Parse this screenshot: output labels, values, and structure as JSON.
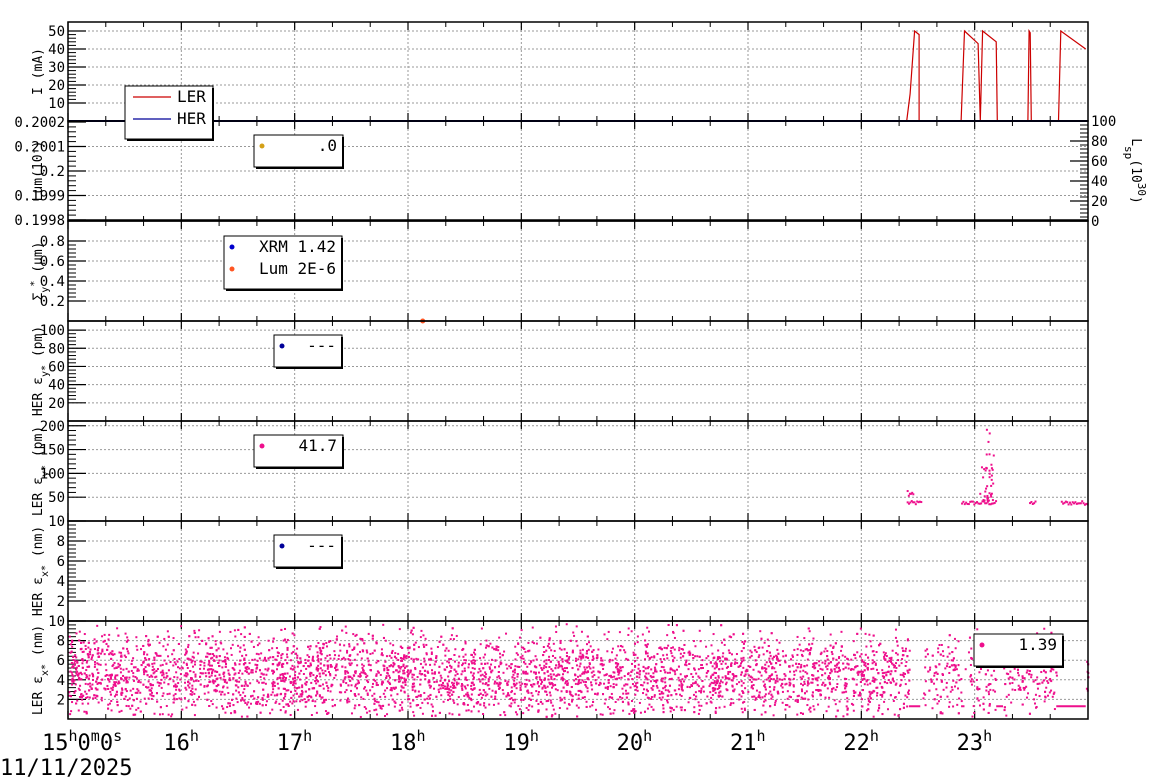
{
  "date_label": "11/11/2025",
  "x_ticks": [
    {
      "h": 15,
      "label": "15",
      "sup": "h",
      "extra": "0",
      "extra_sup": "m",
      "extra2": "0",
      "extra2_sup": "s"
    },
    {
      "h": 16,
      "label": "16",
      "sup": "h"
    },
    {
      "h": 17,
      "label": "17",
      "sup": "h"
    },
    {
      "h": 18,
      "label": "18",
      "sup": "h"
    },
    {
      "h": 19,
      "label": "19",
      "sup": "h"
    },
    {
      "h": 20,
      "label": "20",
      "sup": "h"
    },
    {
      "h": 21,
      "label": "21",
      "sup": "h"
    },
    {
      "h": 22,
      "label": "22",
      "sup": "h"
    },
    {
      "h": 23,
      "label": "23",
      "sup": "h"
    }
  ],
  "colors": {
    "ler": "#cc0000",
    "her": "#000099",
    "emit": "#ee0f8c",
    "lum": "#d4a017",
    "lumdot": "#ff5522"
  },
  "chart_data": [
    {
      "type": "line",
      "id": "current",
      "ylabel": "I (mA)",
      "xlim": [
        15.0,
        24.0
      ],
      "ylim": [
        0,
        55
      ],
      "yticks": [
        "10",
        "20",
        "30",
        "40",
        "50"
      ],
      "legend": [
        {
          "name": "LER",
          "color": "#cc0000"
        },
        {
          "name": "HER",
          "color": "#000099"
        }
      ],
      "series": [
        {
          "name": "LER",
          "x": [
            15.0,
            22.4,
            22.43,
            22.47,
            22.51,
            22.51,
            22.88,
            22.91,
            23.03,
            23.05,
            23.07,
            23.19,
            23.2,
            23.47,
            23.48,
            23.49,
            23.5,
            23.5,
            23.74,
            23.76,
            23.98
          ],
          "y": [
            0,
            0,
            15,
            50,
            48,
            0,
            0,
            50,
            43,
            0,
            50,
            44,
            0,
            0,
            50,
            49,
            0,
            0,
            0,
            50,
            40
          ]
        },
        {
          "name": "HER",
          "x": [
            15.0,
            24.0
          ],
          "y": [
            0,
            0
          ]
        }
      ]
    },
    {
      "type": "line",
      "id": "luminosity",
      "ylabel": "Lum(10",
      "ylabel_sup": "-",
      "ylabel_tail": ")",
      "y2label": "L",
      "y2label_sub": "sp",
      "y2label_mid": "(10",
      "y2label_sup": "30",
      "y2label_tail": ")",
      "yticks": [
        "0.1998",
        "0.1999",
        "0.2",
        "0.2001",
        "0.2002"
      ],
      "y2ticks": [
        "0",
        "20",
        "40",
        "60",
        "80",
        "100"
      ],
      "legend": [
        {
          "name": ".0",
          "color": "#d4a017"
        }
      ],
      "series": []
    },
    {
      "type": "scatter",
      "id": "sigma",
      "ylabel": "Σ",
      "ylabel_sub": "y",
      "ylabel_sup": "*",
      "ylabel_tail": " (µm)",
      "ylim": [
        0,
        1
      ],
      "yticks": [
        "0.2",
        "0.4",
        "0.6",
        "0.8"
      ],
      "legend": [
        {
          "name": "XRM 1.42",
          "color": "#0000cc"
        },
        {
          "name": "Lum 2E-6",
          "color": "#ff5522"
        }
      ],
      "series": [
        {
          "name": "Lum",
          "x": [
            18.13
          ],
          "y": [
            0.0
          ]
        }
      ]
    },
    {
      "type": "scatter",
      "id": "her_emit_y",
      "ylabel": "HER ε",
      "ylabel_sub": "y*",
      "ylabel_tail": " (pm)",
      "ylim": [
        0,
        110
      ],
      "yticks": [
        "20",
        "40",
        "60",
        "80",
        "100"
      ],
      "legend": [
        {
          "name": "---",
          "color": "#000099"
        }
      ],
      "series": []
    },
    {
      "type": "scatter",
      "id": "ler_emit_y",
      "ylabel": "LER ε",
      "ylabel_sub": "y*",
      "ylabel_tail": " (pm)",
      "ylim": [
        0,
        210
      ],
      "yticks": [
        "50",
        "100",
        "150",
        "200"
      ],
      "legend": [
        {
          "name": "41.7",
          "color": "#ee0f8c"
        }
      ],
      "series": [
        {
          "name": "LER",
          "segments": [
            [
              22.4,
              22.53,
              40
            ],
            [
              22.88,
              23.19,
              40
            ],
            [
              23.48,
              23.53,
              40
            ],
            [
              23.76,
              24.0,
              40
            ]
          ],
          "spike": {
            "x": 23.1,
            "ymax": 195
          }
        }
      ]
    },
    {
      "type": "scatter",
      "id": "her_emit_x",
      "ylabel": "HER ε",
      "ylabel_sub": "x*",
      "ylabel_tail": " (nm)",
      "ylim": [
        0,
        10
      ],
      "yticks": [
        "2",
        "4",
        "6",
        "8",
        "10"
      ],
      "legend": [
        {
          "name": "---",
          "color": "#000099"
        }
      ],
      "series": []
    },
    {
      "type": "scatter",
      "id": "ler_emit_x",
      "ylabel": "LER ε",
      "ylabel_sub": "x*",
      "ylabel_tail": " (nm)",
      "ylim": [
        0,
        10
      ],
      "yticks": [
        "2",
        "4",
        "6",
        "8",
        "10"
      ],
      "legend": [
        {
          "name": "1.39",
          "color": "#ee0f8c"
        }
      ],
      "series": [
        {
          "name": "LER",
          "x_range": [
            15.0,
            24.0
          ],
          "y_center": 4.5,
          "gaps": [
            [
              22.42,
              22.52
            ],
            [
              22.88,
              22.91
            ],
            [
              23.19,
              23.25
            ],
            [
              23.72,
              23.98
            ]
          ],
          "floor": 1.3
        }
      ]
    }
  ]
}
